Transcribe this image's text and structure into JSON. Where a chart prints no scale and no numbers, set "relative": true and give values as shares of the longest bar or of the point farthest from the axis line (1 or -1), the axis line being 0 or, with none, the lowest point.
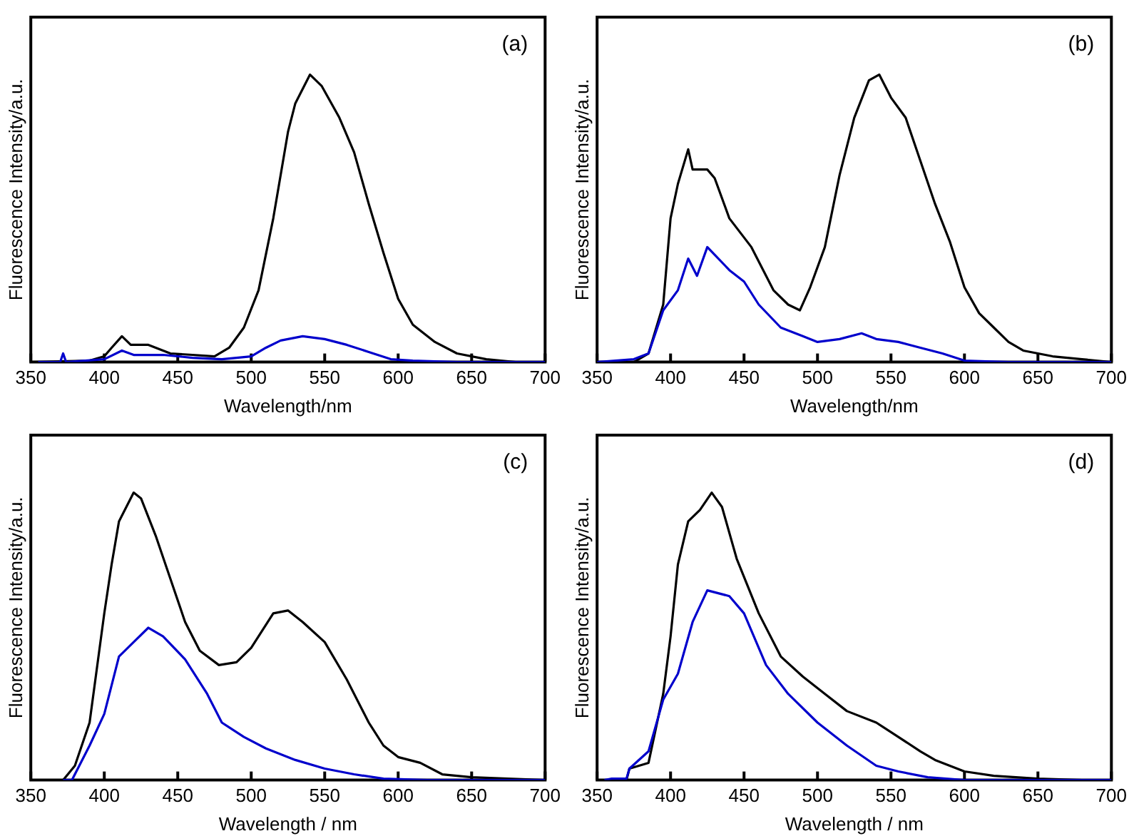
{
  "chart_data": [
    {
      "type": "line",
      "xlabel": "Wavelength/nm",
      "ylabel": "Fluorescence Intensity/a.u.",
      "annotations": [
        "(a)"
      ],
      "relative": true,
      "xlim": [
        350,
        700
      ],
      "xticks": [
        350,
        400,
        450,
        500,
        550,
        600,
        650,
        700
      ],
      "legend": false,
      "grid": false,
      "marker": "none",
      "series": [
        {
          "color": "#000000",
          "x": [
            350,
            390,
            400,
            405,
            412,
            418,
            430,
            445,
            460,
            475,
            485,
            495,
            505,
            515,
            525,
            530,
            540,
            548,
            560,
            570,
            580,
            590,
            600,
            610,
            625,
            640,
            660,
            680,
            700
          ],
          "values": [
            0,
            0.005,
            0.02,
            0.05,
            0.09,
            0.06,
            0.06,
            0.03,
            0.025,
            0.02,
            0.05,
            0.12,
            0.25,
            0.5,
            0.8,
            0.9,
            1,
            0.96,
            0.85,
            0.73,
            0.55,
            0.38,
            0.22,
            0.13,
            0.07,
            0.03,
            0.01,
            0,
            0
          ]
        },
        {
          "color": "#0000cc",
          "x": [
            355,
            370,
            372,
            374,
            400,
            412,
            420,
            440,
            460,
            480,
            500,
            510,
            520,
            535,
            550,
            565,
            580,
            595,
            610,
            640,
            700
          ],
          "values": [
            0,
            0,
            0.03,
            0,
            0.01,
            0.04,
            0.025,
            0.025,
            0.015,
            0.01,
            0.02,
            0.05,
            0.075,
            0.09,
            0.08,
            0.06,
            0.035,
            0.01,
            0.005,
            0,
            0
          ]
        }
      ]
    },
    {
      "type": "line",
      "xlabel": "Wavelength/nm",
      "ylabel": "Fluorescence Intensity/a.u.",
      "annotations": [
        "(b)"
      ],
      "relative": true,
      "xlim": [
        350,
        700
      ],
      "xticks": [
        350,
        400,
        450,
        500,
        550,
        600,
        650,
        700
      ],
      "legend": false,
      "grid": false,
      "marker": "none",
      "series": [
        {
          "color": "#000000",
          "x": [
            350,
            375,
            385,
            395,
            400,
            405,
            412,
            415,
            425,
            430,
            440,
            455,
            470,
            480,
            488,
            495,
            505,
            515,
            525,
            535,
            542,
            550,
            560,
            570,
            580,
            590,
            600,
            610,
            620,
            630,
            640,
            660,
            680,
            700
          ],
          "values": [
            0,
            0,
            0.03,
            0.2,
            0.5,
            0.62,
            0.74,
            0.67,
            0.67,
            0.64,
            0.5,
            0.4,
            0.25,
            0.2,
            0.18,
            0.26,
            0.4,
            0.65,
            0.85,
            0.98,
            1,
            0.92,
            0.85,
            0.7,
            0.55,
            0.42,
            0.26,
            0.17,
            0.12,
            0.07,
            0.04,
            0.02,
            0.01,
            0
          ]
        },
        {
          "color": "#0000cc",
          "x": [
            350,
            375,
            385,
            395,
            405,
            412,
            418,
            425,
            440,
            450,
            460,
            475,
            490,
            500,
            515,
            530,
            540,
            555,
            570,
            585,
            600,
            630,
            700
          ],
          "values": [
            0,
            0.01,
            0.03,
            0.18,
            0.25,
            0.36,
            0.3,
            0.4,
            0.32,
            0.28,
            0.2,
            0.12,
            0.09,
            0.07,
            0.08,
            0.1,
            0.08,
            0.07,
            0.05,
            0.03,
            0.005,
            0,
            0
          ]
        }
      ]
    },
    {
      "type": "line",
      "xlabel": "Wavelength / nm",
      "ylabel": "Fluorescence Intensity/a.u.",
      "annotations": [
        "(c)"
      ],
      "relative": true,
      "xlim": [
        350,
        700
      ],
      "xticks": [
        350,
        400,
        450,
        500,
        550,
        600,
        650,
        700
      ],
      "legend": false,
      "grid": false,
      "marker": "none",
      "series": [
        {
          "color": "#000000",
          "x": [
            355,
            372,
            380,
            390,
            400,
            405,
            410,
            420,
            425,
            435,
            445,
            455,
            465,
            478,
            490,
            500,
            515,
            525,
            535,
            550,
            565,
            580,
            590,
            600,
            615,
            630,
            650,
            700
          ],
          "values": [
            0,
            0,
            0.05,
            0.2,
            0.58,
            0.75,
            0.9,
            1,
            0.98,
            0.85,
            0.7,
            0.55,
            0.45,
            0.4,
            0.41,
            0.46,
            0.58,
            0.59,
            0.55,
            0.48,
            0.35,
            0.2,
            0.12,
            0.08,
            0.06,
            0.02,
            0.01,
            0
          ]
        },
        {
          "color": "#0000cc",
          "x": [
            372,
            378,
            390,
            400,
            410,
            420,
            430,
            440,
            455,
            470,
            480,
            495,
            510,
            530,
            550,
            570,
            590,
            620,
            700
          ],
          "values": [
            0,
            0,
            0.12,
            0.23,
            0.43,
            0.48,
            0.53,
            0.5,
            0.42,
            0.3,
            0.2,
            0.15,
            0.11,
            0.07,
            0.04,
            0.02,
            0.005,
            0,
            0
          ]
        }
      ]
    },
    {
      "type": "line",
      "xlabel": "Wavelength / nm",
      "ylabel": "Fluorescence Intensity/a.u.",
      "annotations": [
        "(d)"
      ],
      "relative": true,
      "xlim": [
        350,
        700
      ],
      "xticks": [
        350,
        400,
        450,
        500,
        550,
        600,
        650,
        700
      ],
      "legend": false,
      "grid": false,
      "marker": "none",
      "series": [
        {
          "color": "#000000",
          "x": [
            350,
            370,
            372,
            385,
            395,
            400,
            405,
            412,
            420,
            428,
            435,
            445,
            460,
            475,
            490,
            505,
            520,
            540,
            555,
            570,
            580,
            600,
            620,
            650,
            680,
            700
          ],
          "values": [
            0,
            0,
            0.04,
            0.06,
            0.3,
            0.5,
            0.75,
            0.9,
            0.94,
            1,
            0.95,
            0.77,
            0.58,
            0.43,
            0.36,
            0.3,
            0.24,
            0.2,
            0.15,
            0.1,
            0.07,
            0.03,
            0.015,
            0.005,
            0,
            0
          ]
        },
        {
          "color": "#0000cc",
          "x": [
            355,
            360,
            370,
            372,
            385,
            395,
            405,
            415,
            425,
            440,
            450,
            465,
            480,
            500,
            520,
            540,
            555,
            575,
            600,
            700
          ],
          "values": [
            0,
            0.005,
            0.005,
            0.04,
            0.1,
            0.28,
            0.37,
            0.55,
            0.66,
            0.64,
            0.58,
            0.4,
            0.3,
            0.2,
            0.12,
            0.05,
            0.03,
            0.01,
            0,
            0
          ]
        }
      ]
    }
  ]
}
